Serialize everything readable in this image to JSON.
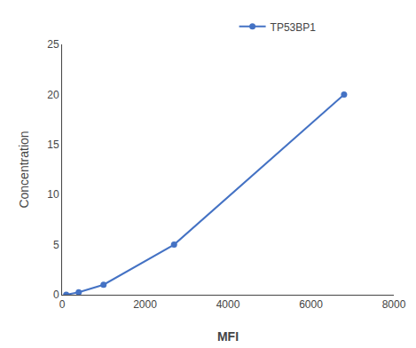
{
  "chart_data": {
    "type": "line",
    "x": [
      100,
      400,
      1000,
      2700,
      6800
    ],
    "series": [
      {
        "name": "TP53BP1",
        "color": "#4472C4",
        "marker": "circle",
        "values": [
          0,
          0.25,
          1,
          5,
          20
        ]
      }
    ],
    "xlabel": "MFI",
    "ylabel": "Concentration",
    "xlim": [
      0,
      8000
    ],
    "ylim": [
      0,
      25
    ],
    "xticks": [
      0,
      2000,
      4000,
      6000,
      8000
    ],
    "yticks": [
      0,
      5,
      10,
      15,
      20,
      25
    ],
    "grid": false,
    "legend": "top"
  }
}
